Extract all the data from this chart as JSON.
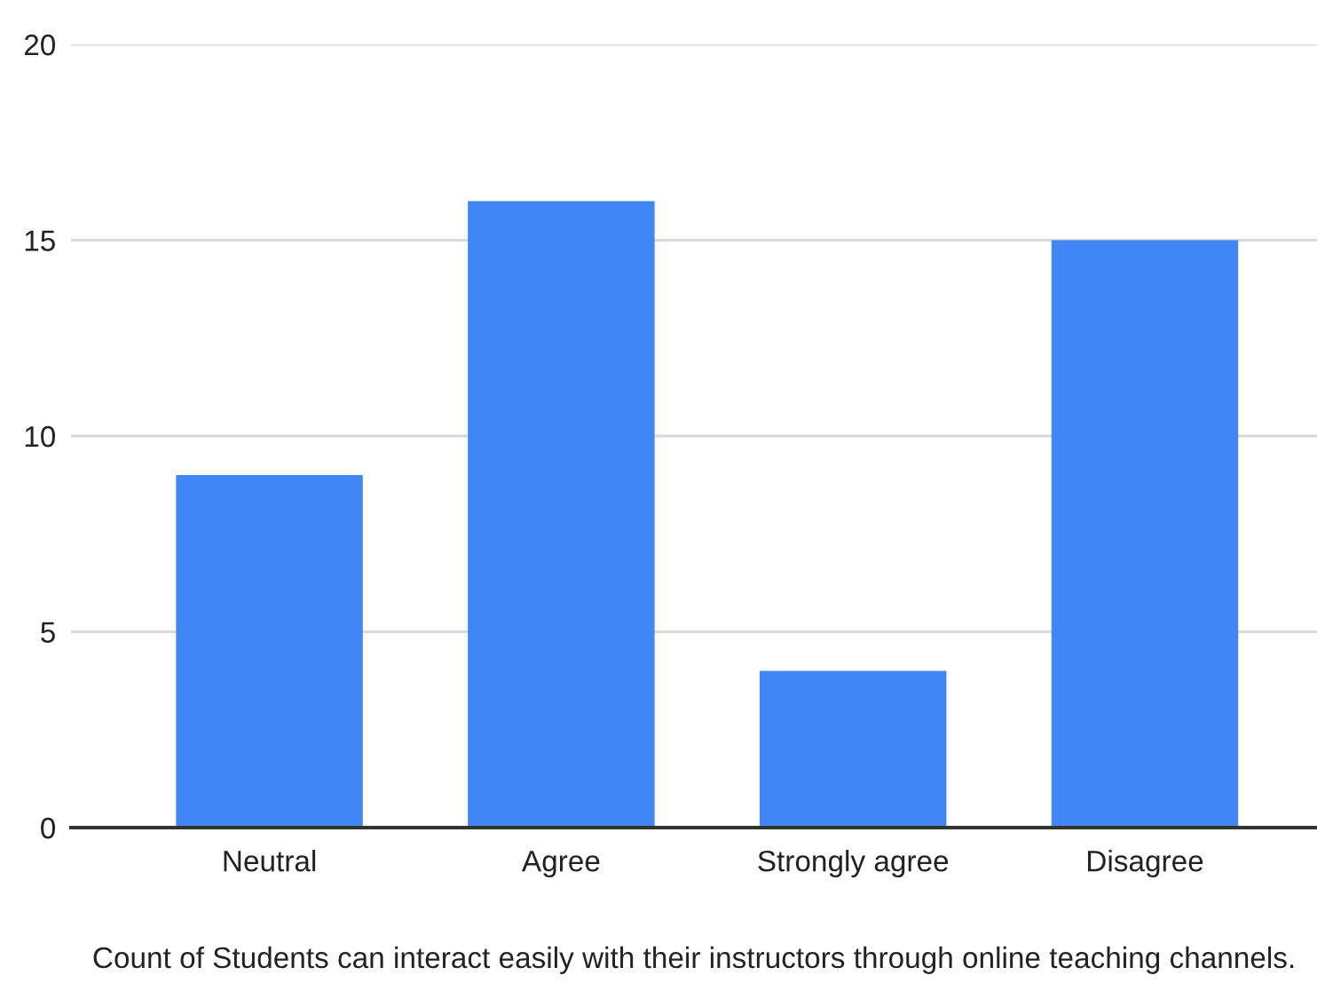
{
  "chart_data": {
    "type": "bar",
    "xlabel": "Count of Students can interact easily with their instructors through online teaching channels.",
    "categories": [
      "Neutral",
      "Agree",
      "Strongly agree",
      "Disagree"
    ],
    "values": [
      9,
      16,
      4,
      15
    ],
    "color": "#4285f4",
    "ylim": [
      0,
      20
    ],
    "yticks": [
      0,
      5,
      10,
      15,
      20
    ],
    "grid": "y",
    "legend": false
  }
}
